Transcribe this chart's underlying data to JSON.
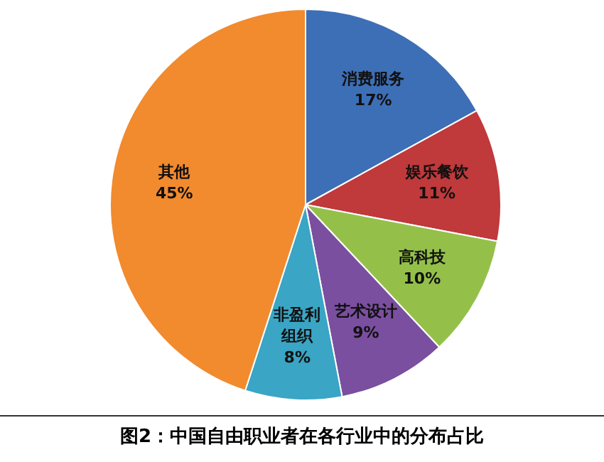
{
  "chart_data": {
    "type": "pie",
    "title": "图2：中国自由职业者在各行业中的分布占比",
    "categories": [
      "消费服务",
      "娱乐餐饮",
      "高科技",
      "艺术设计",
      "非盈利组织",
      "其他"
    ],
    "values": [
      17,
      11,
      10,
      9,
      8,
      45
    ],
    "value_labels": [
      "17%",
      "11%",
      "10%",
      "9%",
      "8%",
      "45%"
    ],
    "colors": [
      "#3d6fb6",
      "#c0393b",
      "#94c04a",
      "#7a4f9f",
      "#3aa5c4",
      "#f28a2e"
    ],
    "legend": false
  }
}
